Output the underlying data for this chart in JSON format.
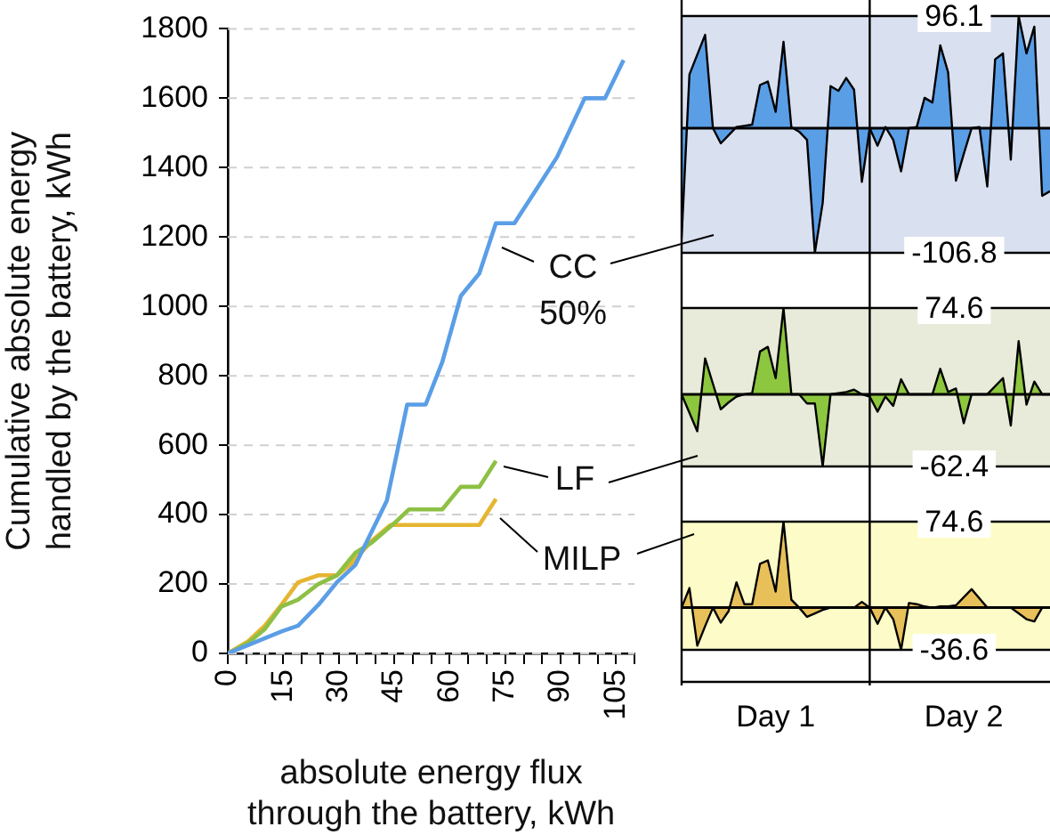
{
  "chart_data": [
    {
      "type": "line",
      "xlabel": "absolute energy flux\nthrough the battery, kWh",
      "ylabel": "Cumulative absolute energy\nhandled by the battery, kWh",
      "xlim": [
        0,
        110
      ],
      "xticks": [
        0,
        {
          "value": 5,
          "label": null
        },
        {
          "value": 10,
          "label": null
        },
        15,
        {
          "value": 20,
          "label": null
        },
        {
          "value": 25,
          "label": null
        },
        30,
        {
          "value": 35,
          "label": null
        },
        {
          "value": 40,
          "label": null
        },
        45,
        {
          "value": 50,
          "label": null
        },
        {
          "value": 55,
          "label": null
        },
        60,
        {
          "value": 65,
          "label": null
        },
        {
          "value": 70,
          "label": null
        },
        75,
        {
          "value": 80,
          "label": null
        },
        {
          "value": 85,
          "label": null
        },
        90,
        {
          "value": 95,
          "label": null
        },
        {
          "value": 100,
          "label": null
        },
        105,
        {
          "value": 110,
          "label": null
        }
      ],
      "ylim": [
        0,
        1800
      ],
      "yticks": [
        0,
        200,
        400,
        600,
        800,
        1000,
        1200,
        1400,
        1600,
        1800
      ],
      "grid": "y",
      "series": [
        {
          "name": "CC 50%",
          "color": "#5a9ee6",
          "x": [
            0,
            14.5,
            19,
            24.5,
            29.5,
            34.5,
            43,
            48.5,
            53.5,
            58,
            63,
            68,
            72.5,
            77.5,
            83,
            89,
            96.5,
            102,
            107
          ],
          "values": [
            0,
            63,
            80,
            140,
            205,
            255,
            440,
            717,
            717,
            840,
            1030,
            1095,
            1240,
            1240,
            1330,
            1430,
            1600,
            1600,
            1710
          ]
        },
        {
          "name": "LF",
          "color": "#8dc044",
          "x": [
            0,
            5.5,
            10,
            14.5,
            19,
            24.5,
            29.5,
            34.5,
            39,
            45,
            49,
            58,
            63,
            68,
            72.5
          ],
          "values": [
            0,
            30,
            70,
            135,
            155,
            200,
            225,
            290,
            320,
            375,
            415,
            415,
            480,
            480,
            555
          ]
        },
        {
          "name": "MILP",
          "color": "#e6b531",
          "x": [
            0,
            5.5,
            10,
            14.5,
            19,
            24.5,
            29.5,
            33.5,
            39,
            44,
            68,
            72.5
          ],
          "values": [
            0,
            35,
            80,
            140,
            205,
            225,
            225,
            260,
            325,
            370,
            370,
            445
          ]
        }
      ]
    },
    {
      "type": "area",
      "categories": [
        null,
        null,
        null,
        null,
        null,
        null,
        null,
        null,
        null,
        null,
        null,
        null,
        null,
        null,
        null,
        null,
        null,
        null,
        null,
        null,
        null,
        null,
        null,
        null,
        null,
        null,
        null,
        null,
        null,
        null,
        null,
        null,
        null,
        null,
        null,
        null,
        null,
        null,
        null,
        null,
        null,
        null,
        null,
        null,
        null,
        null,
        null,
        null
      ],
      "ylim": [
        -106.8,
        96.1
      ],
      "yticks": [
        -106.8,
        96.1
      ],
      "grid": "y",
      "tick_labels": "y",
      "series": [
        {
          "color": "#5a9ee6",
          "values": [
            -94,
            46,
            63,
            80,
            0,
            -13,
            -6,
            1,
            2,
            3,
            37,
            40,
            14,
            74,
            1,
            -3,
            -10,
            -106.8,
            -64,
            36,
            32,
            43,
            33,
            -46,
            0,
            -15,
            1,
            -10,
            -37,
            0,
            1,
            26,
            22,
            71,
            48,
            -45,
            -22,
            0,
            1,
            -50,
            59,
            64,
            -27,
            96.1,
            64,
            87,
            -58,
            -54
          ]
        }
      ]
    },
    {
      "type": "area",
      "categories": [
        null,
        null,
        null,
        null,
        null,
        null,
        null,
        null,
        null,
        null,
        null,
        null,
        null,
        null,
        null,
        null,
        null,
        null,
        null,
        null,
        null,
        null,
        null,
        null,
        null,
        null,
        null,
        null,
        null,
        null,
        null,
        null,
        null,
        null,
        null,
        null,
        null,
        null,
        null,
        null,
        null,
        null,
        null,
        null,
        null,
        null,
        null,
        null
      ],
      "ylim": [
        -62.4,
        74.6
      ],
      "yticks": [
        -62.4,
        74.6
      ],
      "grid": "y",
      "tick_labels": "y",
      "series": [
        {
          "color": "#8dc63f",
          "values": [
            0,
            -16,
            -32,
            31,
            9,
            -13,
            -7,
            -2,
            0,
            1,
            37,
            41,
            14,
            74.6,
            0,
            0,
            -8,
            -8,
            -62.4,
            0,
            1,
            2,
            4,
            0,
            -2,
            -15,
            -2,
            -10,
            13,
            0,
            0,
            0,
            0,
            22,
            2,
            5,
            -25,
            0,
            0,
            0,
            7,
            14,
            -27,
            46,
            -9,
            11,
            0,
            0
          ]
        }
      ]
    },
    {
      "type": "area",
      "categories": [
        null,
        null,
        null,
        null,
        null,
        null,
        null,
        null,
        null,
        null,
        null,
        null,
        "Day 1",
        null,
        null,
        null,
        null,
        null,
        null,
        null,
        null,
        null,
        null,
        null,
        null,
        null,
        null,
        null,
        null,
        null,
        null,
        null,
        null,
        null,
        null,
        null,
        "Day 2",
        null,
        null,
        null,
        null,
        null,
        null,
        null,
        null,
        null,
        null,
        null
      ],
      "ylim": [
        -36.6,
        74.6
      ],
      "yticks": [
        -36.6,
        74.6
      ],
      "grid": "y",
      "series": [
        {
          "color": "#e8c05a",
          "values": [
            0,
            17,
            -33,
            -16,
            0,
            -13,
            -3,
            22,
            3,
            3,
            38,
            41,
            14,
            74.6,
            7,
            0,
            -8,
            -5,
            -2,
            0,
            0,
            0,
            0,
            5,
            0,
            -14,
            0,
            -10,
            -36.6,
            4,
            3,
            1,
            0,
            1,
            1,
            2,
            9,
            16,
            8,
            0,
            0,
            0,
            0,
            -5,
            -10,
            -12,
            0,
            0
          ]
        }
      ]
    }
  ]
}
